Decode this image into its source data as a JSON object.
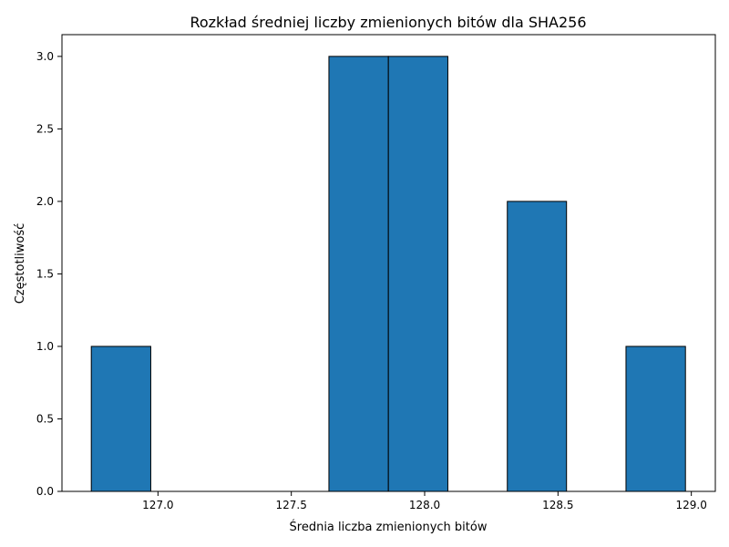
{
  "chart_data": {
    "type": "bar",
    "subtype": "histogram",
    "title": "Rozkład średniej liczby zmienionych bitów dla SHA256",
    "xlabel": "Średnia liczba zmienionych bitów",
    "ylabel": "Częstotliwość",
    "xlim": [
      126.64,
      129.09
    ],
    "ylim": [
      0,
      3.15
    ],
    "x_ticks": [
      127.0,
      127.5,
      128.0,
      128.5,
      129.0
    ],
    "x_tick_labels": [
      "127.0",
      "127.5",
      "128.0",
      "128.5",
      "129.0"
    ],
    "y_ticks": [
      0,
      0.5,
      1,
      1.5,
      2,
      2.5,
      3
    ],
    "y_tick_labels": [
      "0.0",
      "0.5",
      "1.0",
      "1.5",
      "2.0",
      "2.5",
      "3.0"
    ],
    "bins": [
      {
        "x0": 126.75,
        "x1": 126.973,
        "value": 1
      },
      {
        "x0": 126.973,
        "x1": 127.196,
        "value": 0
      },
      {
        "x0": 127.196,
        "x1": 127.419,
        "value": 0
      },
      {
        "x0": 127.419,
        "x1": 127.641,
        "value": 0
      },
      {
        "x0": 127.641,
        "x1": 127.864,
        "value": 3
      },
      {
        "x0": 127.864,
        "x1": 128.087,
        "value": 3
      },
      {
        "x0": 128.087,
        "x1": 128.31,
        "value": 0
      },
      {
        "x0": 128.31,
        "x1": 128.532,
        "value": 2
      },
      {
        "x0": 128.532,
        "x1": 128.755,
        "value": 0
      },
      {
        "x0": 128.755,
        "x1": 128.978,
        "value": 1
      }
    ],
    "bar_color": "#1f77b4",
    "edge_color": "#000000",
    "grid": false,
    "legend": "none"
  }
}
